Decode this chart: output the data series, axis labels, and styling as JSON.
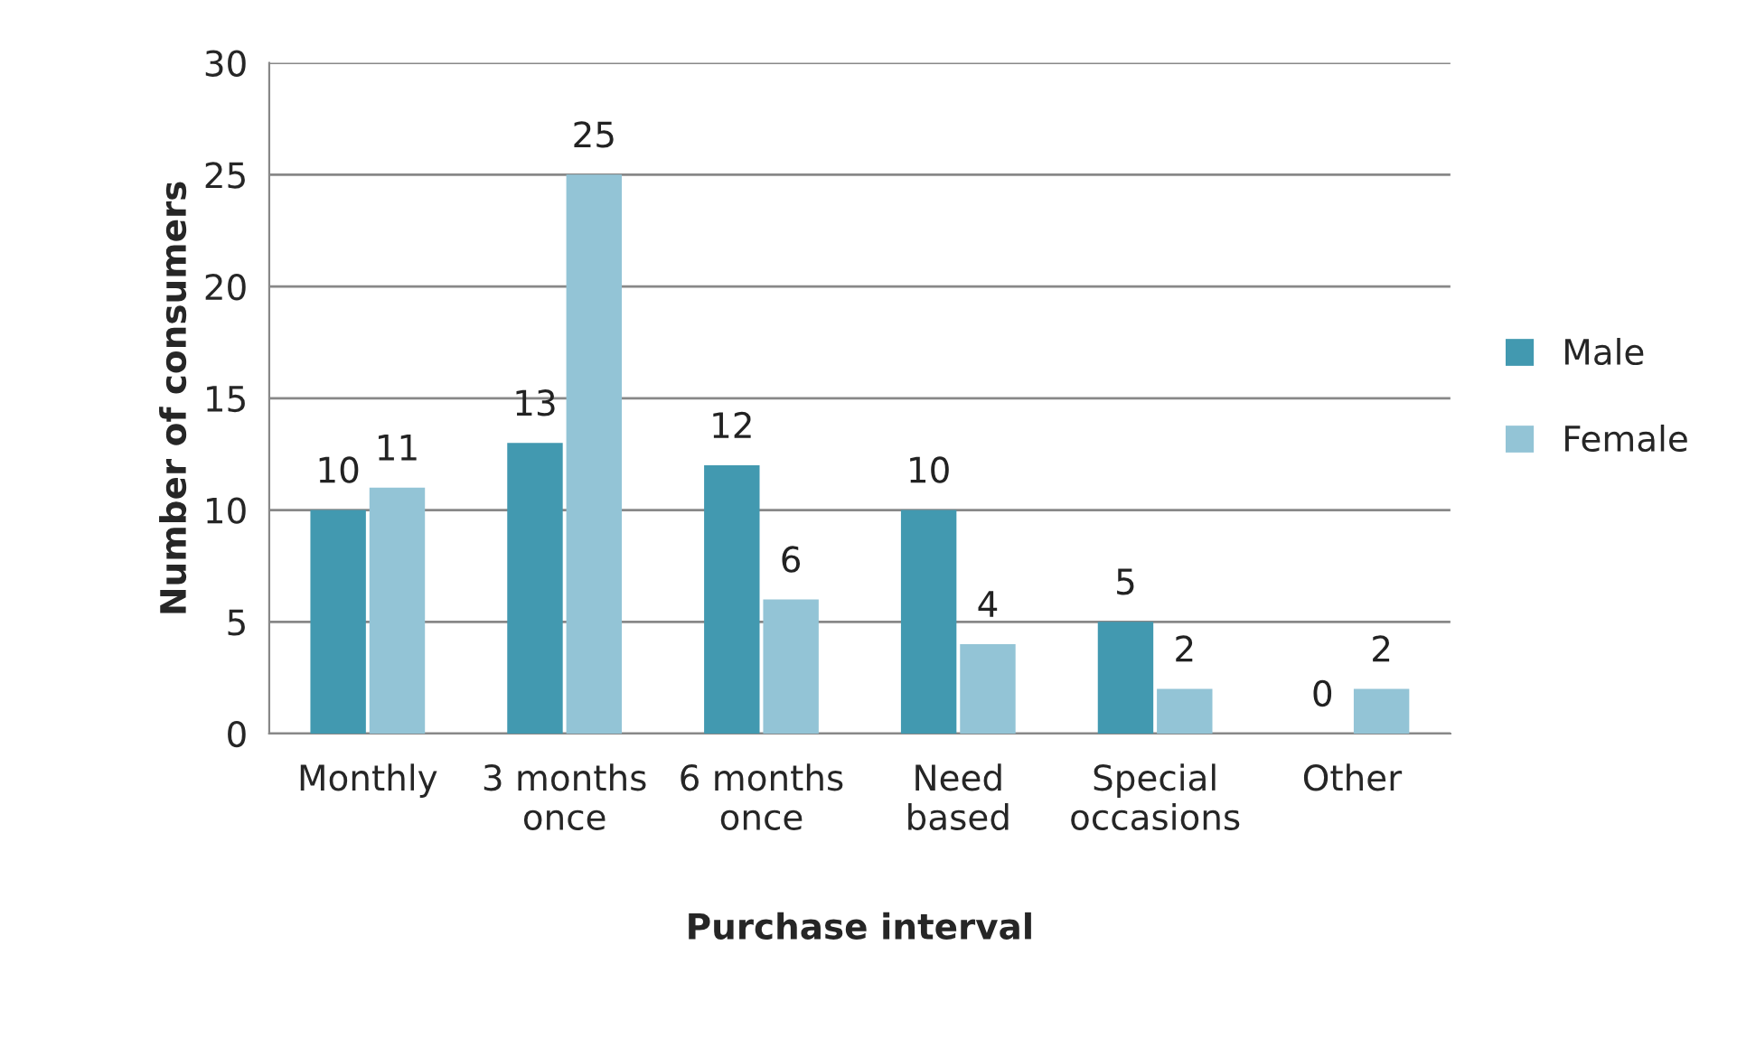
{
  "chart_data": {
    "type": "bar",
    "xlabel": "Purchase interval",
    "ylabel": "Number of consumers",
    "categories": [
      "Monthly",
      "3 months\nonce",
      "6 months\nonce",
      "Need\nbased",
      "Special\noccasions",
      "Other"
    ],
    "series": [
      {
        "name": "Male",
        "color": "#4299b0",
        "values": [
          10,
          13,
          12,
          10,
          5,
          0
        ]
      },
      {
        "name": "Female",
        "color": "#93c4d6",
        "values": [
          11,
          25,
          6,
          4,
          2,
          2
        ]
      }
    ],
    "ylim": [
      0,
      30
    ],
    "yticks": [
      0,
      5,
      10,
      15,
      20,
      25,
      30
    ],
    "grid": "y",
    "legend": "right",
    "data_labels": true
  }
}
